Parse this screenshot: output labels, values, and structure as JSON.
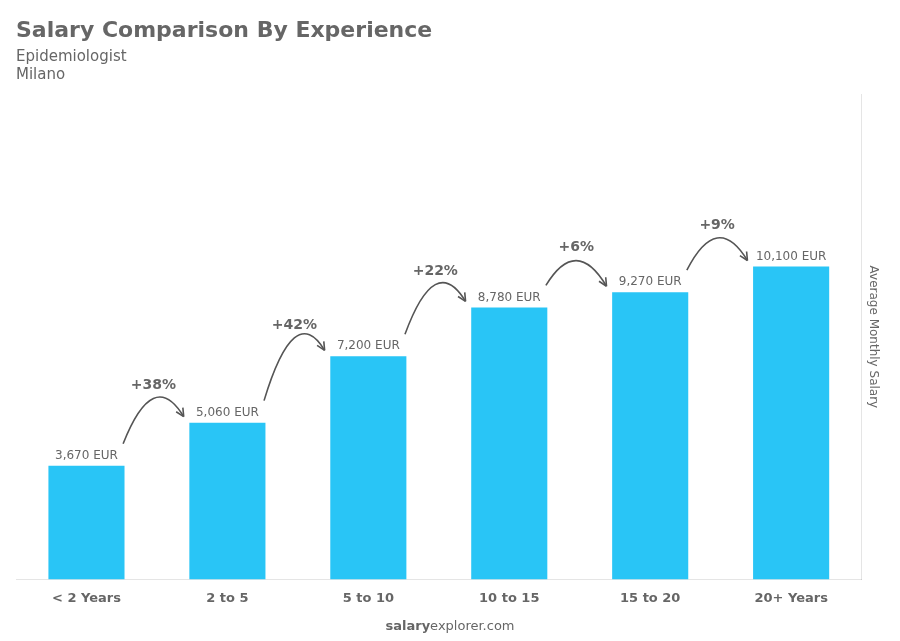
{
  "chart_data": {
    "type": "bar",
    "title": "Salary Comparison By Experience",
    "subtitle": [
      "Epidemiologist",
      "Milano"
    ],
    "ylabel": "Average Monthly Salary",
    "categories": [
      "< 2 Years",
      "2 to 5",
      "5 to 10",
      "10 to 15",
      "15 to 20",
      "20+ Years"
    ],
    "values": [
      3670,
      5060,
      7200,
      8780,
      9270,
      10100
    ],
    "value_labels": [
      "3,670 EUR",
      "5,060 EUR",
      "7,200 EUR",
      "8,780 EUR",
      "9,270 EUR",
      "10,100 EUR"
    ],
    "data_labels": true,
    "color": "#29c5f6",
    "ylim": [
      0,
      15655
    ],
    "tick_labels": "x",
    "grid": false,
    "annotations": {
      "changes": [
        "+38%",
        "+42%",
        "+22%",
        "+6%",
        "+9%"
      ],
      "footer": [
        "salary",
        "explorer.com"
      ]
    }
  }
}
